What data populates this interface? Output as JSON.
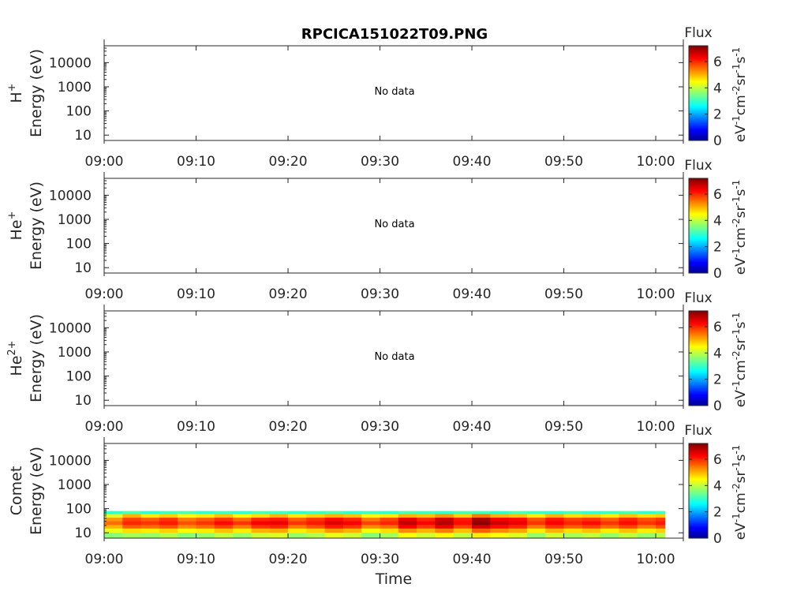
{
  "title": "RPCICA151022T09.PNG",
  "x_axis_label": "Time",
  "colorbar": {
    "label": "Flux",
    "unit_parts": [
      "eV",
      "-1",
      "cm",
      "-2",
      "sr",
      "-1",
      "s",
      "-1"
    ],
    "ticks": [
      0,
      2,
      4,
      6
    ],
    "range": [
      0,
      7.2
    ]
  },
  "time_ticks": [
    "09:00",
    "09:10",
    "09:20",
    "09:30",
    "09:40",
    "09:50",
    "10:00"
  ],
  "energy_ticks": [
    "10000",
    "1000",
    "100",
    "10"
  ],
  "panels": [
    {
      "species_base": "H",
      "species_sup": "+",
      "ylabel": "Energy (eV)",
      "message": "No data"
    },
    {
      "species_base": "He",
      "species_sup": "+",
      "ylabel": "Energy (eV)",
      "message": "No data"
    },
    {
      "species_base": "He",
      "species_sup": "2+",
      "ylabel": "Energy (eV)",
      "message": "No data"
    },
    {
      "species_base": "Comet",
      "species_sup": "",
      "ylabel": "Energy (eV)",
      "message": ""
    }
  ],
  "chart_data": {
    "type": "heatmap",
    "title": "RPCICA151022T09.PNG",
    "xlabel": "Time",
    "x_range": [
      "09:00",
      "10:03"
    ],
    "y_scale": "log",
    "ylim": [
      6,
      50000
    ],
    "colormap": "jet",
    "color_range": [
      0,
      7.2
    ],
    "panels": [
      {
        "species": "H+",
        "status": "No data",
        "values": []
      },
      {
        "species": "He+",
        "status": "No data",
        "values": []
      },
      {
        "species": "He2+",
        "status": "No data",
        "values": []
      },
      {
        "species": "Comet",
        "data_time_range": [
          "09:00",
          "10:01"
        ],
        "energy_range_eV": [
          6,
          80
        ],
        "time_minutes": [
          0,
          2,
          4,
          6,
          8,
          10,
          12,
          14,
          16,
          18,
          20,
          22,
          24,
          26,
          28,
          30,
          32,
          34,
          36,
          38,
          40,
          42,
          44,
          46,
          48,
          50,
          52,
          54,
          56,
          58,
          60
        ],
        "energies_eV": [
          70,
          50,
          35,
          25,
          18,
          12,
          8
        ],
        "flux_log": [
          [
            3.0,
            3.2,
            3.0,
            3.1,
            3.2,
            3.0,
            3.1,
            3.0,
            3.2,
            3.1,
            3.0,
            3.1,
            3.2,
            3.0,
            3.1,
            3.0,
            3.2,
            3.1,
            3.0,
            3.2,
            3.1,
            3.0,
            3.2,
            3.1,
            3.0,
            3.2,
            3.0,
            3.1,
            3.2,
            3.0,
            3.1
          ],
          [
            4.2,
            5.0,
            4.6,
            4.8,
            4.4,
            4.6,
            4.9,
            4.5,
            4.7,
            5.0,
            4.6,
            4.8,
            5.0,
            4.9,
            4.4,
            4.6,
            5.0,
            4.9,
            5.2,
            4.8,
            5.4,
            5.0,
            4.9,
            4.6,
            5.0,
            4.7,
            4.8,
            4.6,
            4.9,
            4.7,
            4.8
          ],
          [
            5.2,
            5.8,
            5.6,
            5.9,
            5.4,
            5.6,
            5.9,
            5.5,
            6.0,
            6.1,
            5.6,
            5.9,
            6.2,
            6.0,
            5.4,
            5.8,
            6.4,
            6.0,
            6.6,
            6.1,
            6.9,
            6.3,
            6.2,
            5.7,
            6.1,
            5.8,
            5.9,
            5.6,
            6.0,
            5.7,
            5.9
          ],
          [
            5.5,
            6.0,
            5.9,
            6.1,
            5.7,
            5.9,
            6.2,
            5.9,
            6.3,
            6.4,
            5.9,
            6.1,
            6.5,
            6.3,
            5.8,
            6.0,
            6.7,
            6.3,
            6.8,
            6.2,
            7.1,
            6.6,
            6.4,
            5.9,
            6.3,
            6.0,
            6.2,
            5.9,
            6.2,
            5.9,
            6.1
          ],
          [
            5.0,
            5.6,
            5.5,
            5.7,
            5.3,
            5.5,
            5.8,
            5.4,
            5.9,
            6.0,
            5.4,
            5.7,
            6.1,
            5.9,
            5.3,
            5.5,
            6.3,
            5.9,
            6.4,
            5.8,
            6.6,
            6.2,
            6.0,
            5.4,
            5.9,
            5.6,
            5.8,
            5.5,
            5.8,
            5.4,
            5.7
          ],
          [
            4.3,
            4.7,
            4.6,
            4.8,
            4.5,
            4.6,
            4.9,
            4.6,
            5.0,
            5.1,
            4.6,
            4.8,
            5.2,
            5.0,
            4.4,
            4.7,
            5.3,
            5.0,
            5.4,
            4.9,
            5.6,
            5.3,
            5.1,
            4.6,
            5.0,
            4.7,
            4.9,
            4.6,
            4.9,
            4.6,
            4.8
          ],
          [
            3.6,
            3.8,
            3.7,
            3.9,
            3.6,
            3.7,
            4.0,
            3.7,
            4.1,
            4.2,
            3.7,
            3.9,
            4.3,
            4.1,
            3.6,
            3.8,
            4.4,
            4.1,
            4.5,
            4.0,
            4.6,
            4.4,
            4.2,
            3.7,
            4.1,
            3.8,
            4.0,
            3.7,
            4.0,
            3.7,
            3.9
          ]
        ]
      }
    ]
  }
}
